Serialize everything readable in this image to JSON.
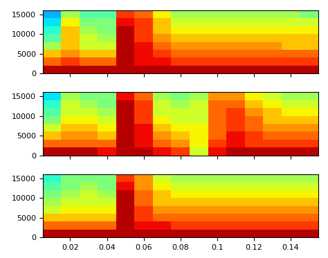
{
  "chart_data": [
    {
      "type": "heatmap",
      "x_edges": [
        0.005,
        0.015,
        0.025,
        0.035,
        0.045,
        0.055,
        0.065,
        0.075,
        0.085,
        0.095,
        0.105,
        0.115,
        0.125,
        0.135,
        0.145,
        0.155
      ],
      "y_edges": [
        0,
        2000,
        4000,
        6000,
        8000,
        10000,
        12000,
        14000,
        16000
      ],
      "cells": [
        [
          0.95,
          0.95,
          0.95,
          0.95,
          0.95,
          0.95,
          0.95,
          0.95,
          0.95,
          0.95,
          0.95,
          0.95,
          0.95,
          0.95,
          0.95
        ],
        [
          0.8,
          0.85,
          0.8,
          0.8,
          0.95,
          0.9,
          0.9,
          0.85,
          0.85,
          0.85,
          0.85,
          0.85,
          0.85,
          0.85,
          0.85
        ],
        [
          0.7,
          0.75,
          0.7,
          0.7,
          0.95,
          0.9,
          0.85,
          0.8,
          0.8,
          0.8,
          0.8,
          0.8,
          0.8,
          0.8,
          0.8
        ],
        [
          0.55,
          0.7,
          0.6,
          0.6,
          0.95,
          0.9,
          0.8,
          0.75,
          0.75,
          0.75,
          0.75,
          0.75,
          0.75,
          0.7,
          0.7
        ],
        [
          0.45,
          0.7,
          0.6,
          0.55,
          0.95,
          0.85,
          0.75,
          0.7,
          0.7,
          0.7,
          0.7,
          0.7,
          0.7,
          0.7,
          0.7
        ],
        [
          0.4,
          0.7,
          0.55,
          0.5,
          0.95,
          0.85,
          0.7,
          0.65,
          0.65,
          0.65,
          0.65,
          0.65,
          0.65,
          0.65,
          0.65
        ],
        [
          0.35,
          0.65,
          0.5,
          0.5,
          0.9,
          0.85,
          0.7,
          0.6,
          0.6,
          0.6,
          0.6,
          0.6,
          0.6,
          0.6,
          0.6
        ],
        [
          0.3,
          0.55,
          0.45,
          0.45,
          0.85,
          0.8,
          0.65,
          0.55,
          0.55,
          0.55,
          0.55,
          0.55,
          0.55,
          0.55,
          0.5
        ]
      ],
      "clim": [
        0,
        1
      ],
      "xlim": [
        0.005,
        0.155
      ],
      "xticks": [
        0.02,
        0.04,
        0.06,
        0.08,
        0.1,
        0.12,
        0.14
      ],
      "ylim": [
        0,
        16000
      ],
      "yticks": [
        0,
        5000,
        10000,
        15000
      ],
      "tick_labels": "y"
    },
    {
      "type": "heatmap",
      "x_edges": [
        0.005,
        0.015,
        0.025,
        0.035,
        0.045,
        0.055,
        0.065,
        0.075,
        0.085,
        0.095,
        0.105,
        0.115,
        0.125,
        0.135,
        0.145,
        0.155
      ],
      "y_edges": [
        0,
        2000,
        4000,
        6000,
        8000,
        10000,
        12000,
        14000,
        16000
      ],
      "cells": [
        [
          0.95,
          0.95,
          0.95,
          0.9,
          0.95,
          0.95,
          0.9,
          0.85,
          0.6,
          0.9,
          0.95,
          0.95,
          0.95,
          0.95,
          0.95
        ],
        [
          0.8,
          0.8,
          0.8,
          0.8,
          0.95,
          0.9,
          0.8,
          0.75,
          0.65,
          0.85,
          0.9,
          0.85,
          0.85,
          0.85,
          0.85
        ],
        [
          0.7,
          0.75,
          0.75,
          0.7,
          0.95,
          0.9,
          0.75,
          0.7,
          0.65,
          0.8,
          0.9,
          0.85,
          0.8,
          0.8,
          0.8
        ],
        [
          0.6,
          0.7,
          0.7,
          0.65,
          0.95,
          0.9,
          0.7,
          0.65,
          0.65,
          0.8,
          0.85,
          0.8,
          0.75,
          0.75,
          0.75
        ],
        [
          0.5,
          0.65,
          0.65,
          0.6,
          0.95,
          0.85,
          0.65,
          0.6,
          0.6,
          0.8,
          0.85,
          0.8,
          0.7,
          0.7,
          0.7
        ],
        [
          0.45,
          0.6,
          0.6,
          0.55,
          0.95,
          0.85,
          0.6,
          0.6,
          0.6,
          0.8,
          0.85,
          0.75,
          0.7,
          0.65,
          0.65
        ],
        [
          0.4,
          0.6,
          0.55,
          0.5,
          0.95,
          0.85,
          0.6,
          0.55,
          0.6,
          0.8,
          0.8,
          0.7,
          0.65,
          0.6,
          0.6
        ],
        [
          0.35,
          0.55,
          0.5,
          0.5,
          0.9,
          0.8,
          0.55,
          0.5,
          0.55,
          0.75,
          0.75,
          0.65,
          0.6,
          0.55,
          0.55
        ]
      ],
      "clim": [
        0,
        1
      ],
      "xlim": [
        0.005,
        0.155
      ],
      "xticks": [
        0.02,
        0.04,
        0.06,
        0.08,
        0.1,
        0.12,
        0.14
      ],
      "ylim": [
        0,
        16000
      ],
      "yticks": [
        0,
        5000,
        10000,
        15000
      ],
      "tick_labels": "y"
    },
    {
      "type": "heatmap",
      "x_edges": [
        0.005,
        0.015,
        0.025,
        0.035,
        0.045,
        0.055,
        0.065,
        0.075,
        0.085,
        0.095,
        0.105,
        0.115,
        0.125,
        0.135,
        0.145,
        0.155
      ],
      "y_edges": [
        0,
        2000,
        4000,
        6000,
        8000,
        10000,
        12000,
        14000,
        16000
      ],
      "cells": [
        [
          0.95,
          0.95,
          0.95,
          0.95,
          0.95,
          0.95,
          0.95,
          0.95,
          0.95,
          0.95,
          0.95,
          0.95,
          0.95,
          0.95,
          0.95
        ],
        [
          0.8,
          0.8,
          0.8,
          0.8,
          0.95,
          0.9,
          0.9,
          0.85,
          0.85,
          0.85,
          0.85,
          0.85,
          0.85,
          0.85,
          0.85
        ],
        [
          0.7,
          0.7,
          0.7,
          0.7,
          0.95,
          0.85,
          0.8,
          0.8,
          0.8,
          0.8,
          0.8,
          0.8,
          0.8,
          0.8,
          0.8
        ],
        [
          0.6,
          0.65,
          0.65,
          0.65,
          0.95,
          0.85,
          0.75,
          0.75,
          0.75,
          0.75,
          0.75,
          0.75,
          0.75,
          0.75,
          0.75
        ],
        [
          0.55,
          0.6,
          0.6,
          0.6,
          0.95,
          0.8,
          0.7,
          0.7,
          0.7,
          0.7,
          0.7,
          0.7,
          0.7,
          0.7,
          0.7
        ],
        [
          0.5,
          0.55,
          0.6,
          0.55,
          0.95,
          0.8,
          0.7,
          0.65,
          0.65,
          0.65,
          0.65,
          0.65,
          0.65,
          0.65,
          0.65
        ],
        [
          0.45,
          0.5,
          0.55,
          0.5,
          0.9,
          0.75,
          0.65,
          0.6,
          0.6,
          0.6,
          0.6,
          0.6,
          0.6,
          0.6,
          0.6
        ],
        [
          0.4,
          0.5,
          0.5,
          0.5,
          0.85,
          0.75,
          0.6,
          0.55,
          0.55,
          0.55,
          0.55,
          0.55,
          0.55,
          0.55,
          0.55
        ]
      ],
      "clim": [
        0,
        1
      ],
      "xlim": [
        0.005,
        0.155
      ],
      "xticks": [
        0.02,
        0.04,
        0.06,
        0.08,
        0.1,
        0.12,
        0.14
      ],
      "ylim": [
        0,
        16000
      ],
      "yticks": [
        0,
        5000,
        10000,
        15000
      ]
    }
  ]
}
